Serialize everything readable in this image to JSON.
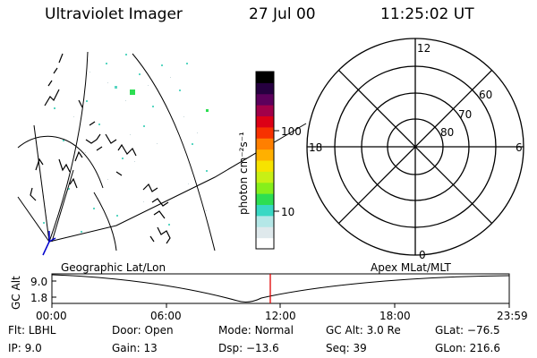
{
  "header": {
    "instrument": "Ultraviolet Imager",
    "date": "27 Jul 00",
    "time": "11:25:02 UT"
  },
  "colorbar": {
    "label": "photon cm⁻²s⁻¹",
    "ticks": [
      "100",
      "10"
    ],
    "colors": [
      "#ffffff",
      "#dfe9ec",
      "#b4e7e7",
      "#39d8c4",
      "#2dde52",
      "#86ef1b",
      "#c8f015",
      "#f6e300",
      "#ffb000",
      "#ff7f00",
      "#f73100",
      "#dc0016",
      "#a10049",
      "#5c005c",
      "#260040",
      "#000000"
    ]
  },
  "polar_plot": {
    "labels": {
      "top": "12",
      "bottom": "0",
      "left": "18",
      "right": "6"
    },
    "ring_labels": [
      "60",
      "70",
      "80"
    ]
  },
  "timeline": {
    "axis_label": "GC Alt",
    "y_ticks": [
      "9.0",
      "1.8"
    ],
    "left_caption": "Geographic Lat/Lon",
    "right_caption": "Apex MLat/MLT",
    "x_ticks": [
      "00:00",
      "06:00",
      "12:00",
      "18:00",
      "23:59"
    ],
    "marker_color": "#e00000"
  },
  "info": {
    "row1": [
      {
        "label": "Flt:",
        "value": "LBHL"
      },
      {
        "label": "Door:",
        "value": "Open"
      },
      {
        "label": "Mode:",
        "value": "Normal"
      },
      {
        "label": "GC Alt:",
        "value": "3.0 Re"
      },
      {
        "label": "GLat:",
        "value": "−76.5"
      }
    ],
    "row2": [
      {
        "label": "IP:",
        "value": "9.0"
      },
      {
        "label": "Gain:",
        "value": "13"
      },
      {
        "label": "Dsp:",
        "value": "−13.6"
      },
      {
        "label": "Seq:",
        "value": "39"
      },
      {
        "label": "GLon:",
        "value": "216.6"
      }
    ]
  }
}
